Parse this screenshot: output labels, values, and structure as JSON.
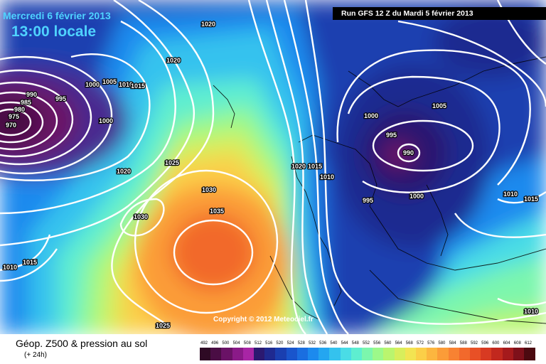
{
  "header": {
    "date": "Mercredi 6 février 2013",
    "time": "13:00 locale",
    "run": "Run GFS 12 Z du Mardi 5 février 2013"
  },
  "copyright": "Copyright © 2012 Meteociel.fr",
  "legend": {
    "title": "Géop. Z500 & pression au sol",
    "subtitle": "(+ 24h)",
    "values": [
      "492",
      "496",
      "500",
      "504",
      "508",
      "512",
      "516",
      "520",
      "524",
      "528",
      "532",
      "536",
      "540",
      "544",
      "548",
      "552",
      "556",
      "560",
      "564",
      "568",
      "572",
      "576",
      "580",
      "584",
      "588",
      "592",
      "596",
      "600",
      "604",
      "608",
      "612"
    ],
    "colors": [
      "#2e0a24",
      "#4a0d44",
      "#6a1266",
      "#8a1a88",
      "#a825a5",
      "#2b1970",
      "#1f2a90",
      "#1a3fb0",
      "#1955cc",
      "#1a6ee0",
      "#1c8aee",
      "#24a6f0",
      "#34c2ee",
      "#4adce6",
      "#5eeed0",
      "#7cf6ad",
      "#9cf98a",
      "#baf56e",
      "#d8ee5c",
      "#f2e452",
      "#fbcf48",
      "#fcb63f",
      "#fb9c38",
      "#f88232",
      "#f2692c",
      "#e85026",
      "#d83a22",
      "#c2281e",
      "#a51a1c",
      "#7e101a",
      "#4c0a10"
    ]
  },
  "map": {
    "low_centers": [
      {
        "label": "970"
      },
      {
        "label": "990"
      }
    ],
    "isobar_labels": [
      {
        "label": "1020"
      },
      {
        "label": "1020"
      },
      {
        "label": "1000"
      },
      {
        "label": "1005"
      },
      {
        "label": "1010"
      },
      {
        "label": "1015"
      },
      {
        "label": "990"
      },
      {
        "label": "985"
      },
      {
        "label": "980"
      },
      {
        "label": "975"
      },
      {
        "label": "995"
      },
      {
        "label": "1000"
      },
      {
        "label": "1020"
      },
      {
        "label": "1025"
      },
      {
        "label": "1030"
      },
      {
        "label": "1035"
      },
      {
        "label": "1030"
      },
      {
        "label": "1015"
      },
      {
        "label": "1010"
      },
      {
        "label": "1025"
      },
      {
        "label": "1020"
      },
      {
        "label": "1015"
      },
      {
        "label": "1010"
      },
      {
        "label": "995"
      },
      {
        "label": "1000"
      },
      {
        "label": "1005"
      },
      {
        "label": "1000"
      },
      {
        "label": "995"
      },
      {
        "label": "1010"
      },
      {
        "label": "1015"
      },
      {
        "label": "1010"
      }
    ]
  }
}
